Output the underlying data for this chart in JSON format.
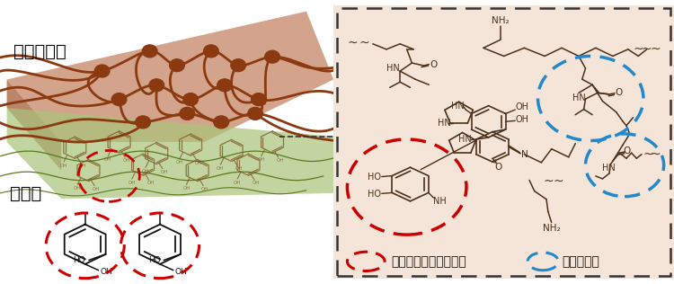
{
  "fig_width": 7.5,
  "fig_height": 3.16,
  "dpi": 100,
  "bg_color": "#ffffff",
  "left_panel": {
    "tough_gel_color": "#c8896a",
    "tough_gel_alpha": 0.78,
    "adhesion_color": "#a8c47a",
    "adhesion_alpha": 0.7,
    "network_color": "#8B3A0F",
    "network_lw": 2.0,
    "node_color": "#8B3A0F",
    "catechol_color": "#7a5520",
    "label_toughgel": "タフゲル層",
    "label_adhesion": "接着層",
    "label_fontsize": 14,
    "label_color": "#000000",
    "red_circle_color": "#cc0000",
    "red_circle_lw": 2.5
  },
  "right_panel": {
    "bg_color": "#f5e4d8",
    "border_color": "#333333",
    "border_lw": 1.8,
    "structure_color": "#4a3018",
    "red_circle_color": "#cc0000",
    "blue_circle_color": "#2288cc",
    "circle_lw": 2.5,
    "label_接着部": "接着部（カテコール）",
    "label_温度応答部": "温度応答部",
    "legend_fontsize": 10
  }
}
